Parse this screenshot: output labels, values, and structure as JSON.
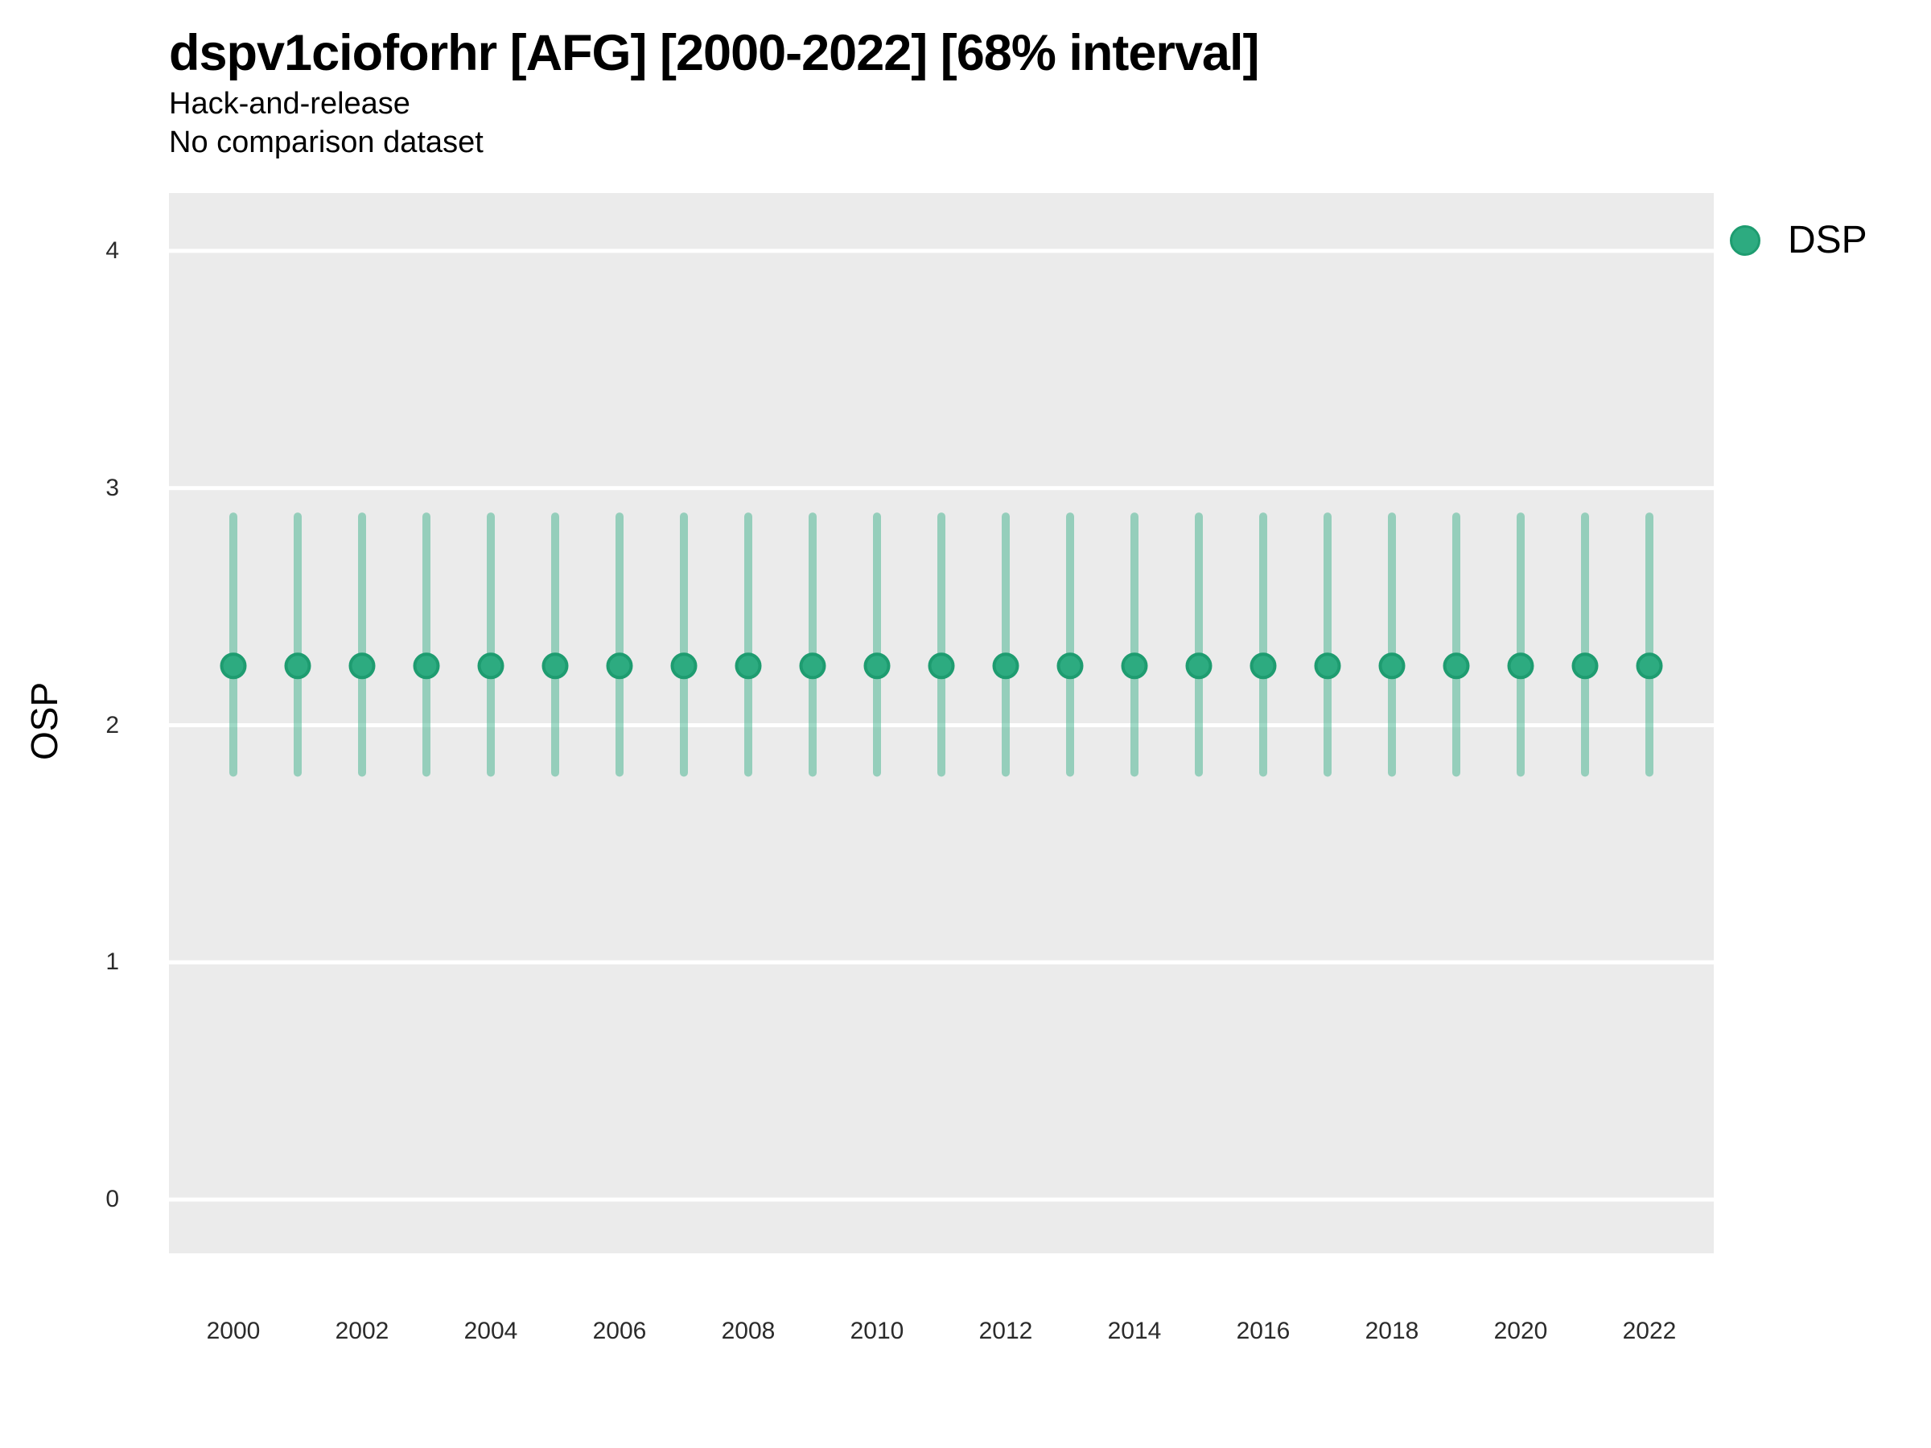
{
  "header": {
    "title": "dspv1cioforhr [AFG] [2000-2022] [68% interval]",
    "subtitle1": "Hack-and-release",
    "subtitle2": "No comparison dataset"
  },
  "legend": {
    "label": "DSP"
  },
  "chart_data": {
    "type": "pointrange",
    "title": "dspv1cioforhr [AFG] [2000-2022] [68% interval]",
    "subtitle": [
      "Hack-and-release",
      "No comparison dataset"
    ],
    "xlabel": "",
    "ylabel": "OSP",
    "legend_entries": [
      "DSP"
    ],
    "legend_position": "right-top",
    "grid": "horizontal-major-only",
    "x": [
      2000,
      2001,
      2002,
      2003,
      2004,
      2005,
      2006,
      2007,
      2008,
      2009,
      2010,
      2011,
      2012,
      2013,
      2014,
      2015,
      2016,
      2017,
      2018,
      2019,
      2020,
      2021,
      2022
    ],
    "series": [
      {
        "name": "DSP",
        "estimate": [
          2.25,
          2.25,
          2.25,
          2.25,
          2.25,
          2.25,
          2.25,
          2.25,
          2.25,
          2.25,
          2.25,
          2.25,
          2.25,
          2.25,
          2.25,
          2.25,
          2.25,
          2.25,
          2.25,
          2.25,
          2.25,
          2.25,
          2.25
        ],
        "lower": [
          1.8,
          1.8,
          1.8,
          1.8,
          1.8,
          1.8,
          1.8,
          1.8,
          1.8,
          1.8,
          1.8,
          1.8,
          1.8,
          1.8,
          1.8,
          1.8,
          1.8,
          1.8,
          1.8,
          1.8,
          1.8,
          1.8,
          1.8
        ],
        "upper": [
          2.88,
          2.88,
          2.88,
          2.88,
          2.88,
          2.88,
          2.88,
          2.88,
          2.88,
          2.88,
          2.88,
          2.88,
          2.88,
          2.88,
          2.88,
          2.88,
          2.88,
          2.88,
          2.88,
          2.88,
          2.88,
          2.88,
          2.88
        ]
      }
    ],
    "interval_level": "68%",
    "xticks": [
      2000,
      2002,
      2004,
      2006,
      2008,
      2010,
      2012,
      2014,
      2016,
      2018,
      2020,
      2022
    ],
    "yticks": [
      0,
      1,
      2,
      3,
      4
    ],
    "ylim": [
      -0.227,
      4.244
    ],
    "colors": {
      "point": "#2dab80",
      "point_ring": "#1e9c70",
      "interval": "#2dab80",
      "interval_opacity": 0.45,
      "panel_bg": "#ebebeb",
      "gridline": "#ffffff",
      "text": "#000000",
      "tick_text": "#2b2b2b"
    }
  }
}
